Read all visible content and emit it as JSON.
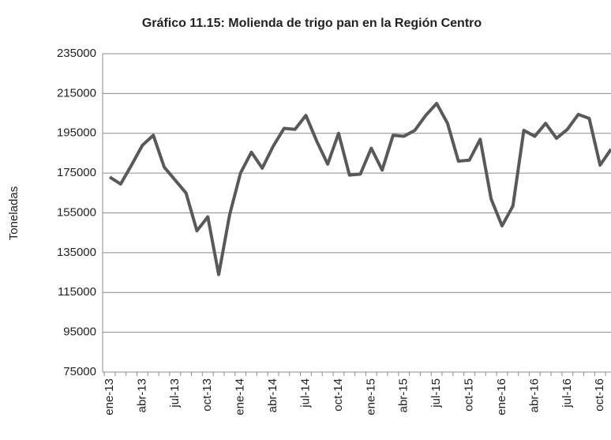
{
  "chart_data": {
    "type": "line",
    "title": "Gráfico 11.15: Molienda de trigo pan en la Región Centro",
    "y_label": "Toneladas",
    "categories": [
      "ene-13",
      null,
      null,
      "abr-13",
      null,
      null,
      "jul-13",
      null,
      null,
      "oct-13",
      null,
      null,
      "ene-14",
      null,
      null,
      "abr-14",
      null,
      null,
      "jul-14",
      null,
      null,
      "oct-14",
      null,
      null,
      "ene-15",
      null,
      null,
      "abr-15",
      null,
      null,
      "jul-15",
      null,
      null,
      "oct-15",
      null,
      null,
      "ene-16",
      null,
      null,
      "abr-16",
      null,
      null,
      "jul-16",
      null,
      null,
      "oct-16",
      null
    ],
    "series": [
      {
        "name": "Molienda",
        "color": "#595959",
        "values": [
          173000,
          169500,
          179000,
          189000,
          194000,
          178000,
          171500,
          165000,
          146000,
          153000,
          124000,
          154000,
          175000,
          185500,
          177500,
          188500,
          197500,
          197000,
          204000,
          191000,
          179500,
          195000,
          174000,
          174500,
          187500,
          176500,
          194000,
          193500,
          196500,
          204000,
          210000,
          200000,
          181000,
          181500,
          192000,
          162000,
          148500,
          158500,
          196500,
          193500,
          200000,
          192500,
          197000,
          204500,
          202500,
          179000,
          187000
        ]
      }
    ],
    "ylim": [
      75000,
      235000
    ],
    "yticks": [
      75000,
      95000,
      115000,
      135000,
      155000,
      175000,
      195000,
      215000,
      235000
    ],
    "grid": true
  }
}
